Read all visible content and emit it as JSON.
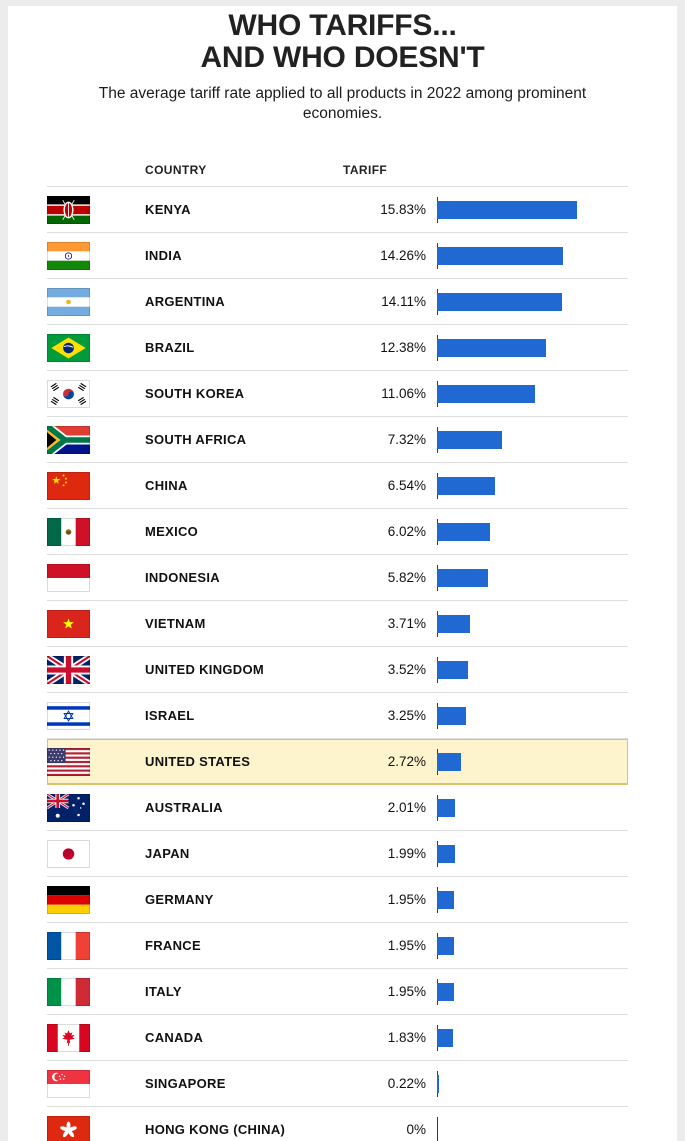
{
  "header": {
    "title_line1": "WHO TARIFFS...",
    "title_line2": "AND WHO DOESN'T",
    "subtitle": "The average tariff rate applied to all products in 2022 among prominent economies."
  },
  "table": {
    "country_header": "COUNTRY",
    "tariff_header": "TARIFF"
  },
  "colors": {
    "bar": "#2169d2",
    "highlight_bg": "#fdf3cc",
    "highlight_border": "#dfc36c",
    "divider": "#dddddd"
  },
  "chart_data": {
    "type": "bar",
    "title": "WHO TARIFFS... AND WHO DOESN'T",
    "subtitle": "The average tariff rate applied to all products in 2022 among prominent economies.",
    "orientation": "horizontal",
    "xlim": [
      0,
      15.83
    ],
    "highlighted_category": "UNITED STATES",
    "columns": [
      "COUNTRY",
      "TARIFF"
    ],
    "rows": [
      {
        "country": "KENYA",
        "flag": "kenya",
        "label": "15.83%",
        "value": 15.83
      },
      {
        "country": "INDIA",
        "flag": "india",
        "label": "14.26%",
        "value": 14.26
      },
      {
        "country": "ARGENTINA",
        "flag": "argentina",
        "label": "14.11%",
        "value": 14.11
      },
      {
        "country": "BRAZIL",
        "flag": "brazil",
        "label": "12.38%",
        "value": 12.38
      },
      {
        "country": "SOUTH KOREA",
        "flag": "southkorea",
        "label": "11.06%",
        "value": 11.06
      },
      {
        "country": "SOUTH AFRICA",
        "flag": "southafrica",
        "label": "7.32%",
        "value": 7.32
      },
      {
        "country": "CHINA",
        "flag": "china",
        "label": "6.54%",
        "value": 6.54
      },
      {
        "country": "MEXICO",
        "flag": "mexico",
        "label": "6.02%",
        "value": 6.02
      },
      {
        "country": "INDONESIA",
        "flag": "indonesia",
        "label": "5.82%",
        "value": 5.82
      },
      {
        "country": "VIETNAM",
        "flag": "vietnam",
        "label": "3.71%",
        "value": 3.71
      },
      {
        "country": "UNITED KINGDOM",
        "flag": "uk",
        "label": "3.52%",
        "value": 3.52
      },
      {
        "country": "ISRAEL",
        "flag": "israel",
        "label": "3.25%",
        "value": 3.25
      },
      {
        "country": "UNITED STATES",
        "flag": "us",
        "label": "2.72%",
        "value": 2.72,
        "highlight": true
      },
      {
        "country": "AUSTRALIA",
        "flag": "australia",
        "label": "2.01%",
        "value": 2.01
      },
      {
        "country": "JAPAN",
        "flag": "japan",
        "label": "1.99%",
        "value": 1.99
      },
      {
        "country": "GERMANY",
        "flag": "germany",
        "label": "1.95%",
        "value": 1.95
      },
      {
        "country": "FRANCE",
        "flag": "france",
        "label": "1.95%",
        "value": 1.95
      },
      {
        "country": "ITALY",
        "flag": "italy",
        "label": "1.95%",
        "value": 1.95
      },
      {
        "country": "CANADA",
        "flag": "canada",
        "label": "1.83%",
        "value": 1.83
      },
      {
        "country": "SINGAPORE",
        "flag": "singapore",
        "label": "0.22%",
        "value": 0.22
      },
      {
        "country": "HONG KONG (CHINA)",
        "flag": "hongkong",
        "label": "0%",
        "value": 0
      }
    ]
  }
}
